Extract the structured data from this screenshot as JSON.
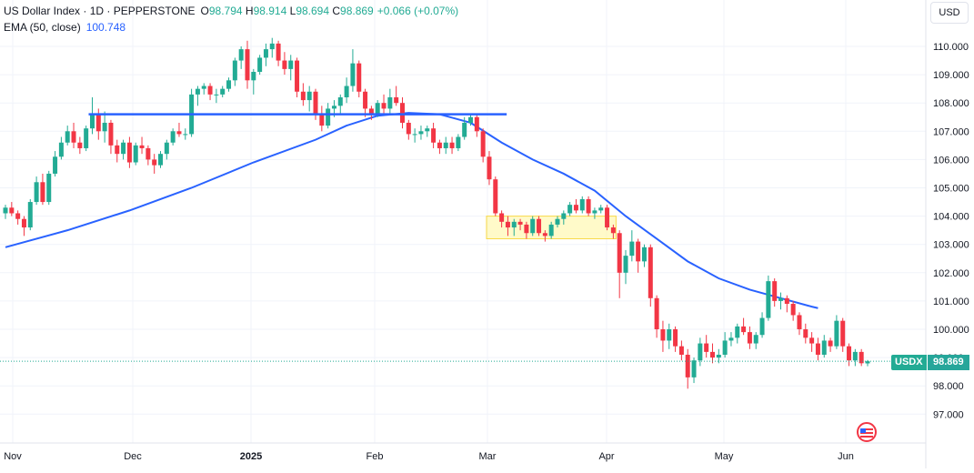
{
  "legend": {
    "title": "US Dollar Index · 1D · PEPPERSTONE",
    "o_label": "O",
    "o_value": "98.794",
    "h_label": "H",
    "h_value": "98.914",
    "l_label": "L",
    "l_value": "98.694",
    "c_label": "C",
    "c_value": "98.869",
    "change": "+0.066 (+0.07%)",
    "ema_name": "EMA (50, close)",
    "ema_value": "100.748"
  },
  "currency": "USD",
  "price_tag": {
    "symbol": "USDX",
    "value": "98.869"
  },
  "icons": {
    "flag": "us-flag-icon"
  },
  "colors": {
    "up": "#22ab94",
    "down": "#f23645",
    "ema": "#2962ff",
    "zone": "#fff59d"
  },
  "chart_data": {
    "type": "candlestick",
    "y_ticks": [
      "97.000",
      "98.000",
      "99.000",
      "100.000",
      "101.000",
      "102.000",
      "103.000",
      "104.000",
      "105.000",
      "106.000",
      "107.000",
      "108.000",
      "109.000",
      "110.000"
    ],
    "x_ticks": [
      {
        "label": "Nov",
        "bold": false
      },
      {
        "label": "Dec",
        "bold": false
      },
      {
        "label": "2025",
        "bold": true
      },
      {
        "label": "Feb",
        "bold": false
      },
      {
        "label": "Mar",
        "bold": false
      },
      {
        "label": "Apr",
        "bold": false
      },
      {
        "label": "May",
        "bold": false
      },
      {
        "label": "Jun",
        "bold": false
      }
    ],
    "ylim": [
      96.0,
      111.2
    ],
    "grid": true,
    "last_price": 98.869,
    "candles": [
      [
        104.1,
        104.4,
        103.9,
        104.3
      ],
      [
        104.3,
        104.5,
        104.0,
        104.1
      ],
      [
        104.1,
        104.2,
        103.7,
        103.9
      ],
      [
        103.9,
        104.0,
        103.3,
        103.6
      ],
      [
        103.6,
        104.6,
        103.5,
        104.5
      ],
      [
        104.5,
        105.4,
        104.4,
        105.2
      ],
      [
        105.2,
        105.5,
        104.4,
        104.5
      ],
      [
        104.5,
        105.6,
        104.4,
        105.5
      ],
      [
        105.5,
        106.3,
        105.4,
        106.1
      ],
      [
        106.1,
        106.8,
        106.0,
        106.6
      ],
      [
        106.6,
        107.2,
        106.5,
        107.0
      ],
      [
        107.0,
        107.3,
        106.4,
        106.6
      ],
      [
        106.6,
        106.8,
        106.2,
        106.4
      ],
      [
        106.4,
        107.2,
        106.3,
        107.1
      ],
      [
        107.1,
        108.2,
        106.9,
        107.6
      ],
      [
        107.6,
        107.8,
        106.7,
        107.0
      ],
      [
        107.0,
        107.7,
        106.6,
        107.3
      ],
      [
        107.3,
        107.4,
        106.2,
        106.5
      ],
      [
        106.5,
        106.7,
        105.9,
        106.2
      ],
      [
        106.2,
        106.7,
        106.0,
        106.6
      ],
      [
        106.6,
        106.8,
        105.7,
        105.9
      ],
      [
        105.9,
        106.6,
        105.8,
        106.5
      ],
      [
        106.5,
        106.8,
        106.2,
        106.4
      ],
      [
        106.4,
        106.5,
        105.8,
        106.0
      ],
      [
        106.0,
        106.2,
        105.5,
        105.8
      ],
      [
        105.8,
        106.3,
        105.7,
        106.2
      ],
      [
        106.2,
        106.7,
        106.0,
        106.6
      ],
      [
        106.6,
        107.1,
        106.5,
        107.0
      ],
      [
        107.0,
        107.3,
        106.8,
        106.9
      ],
      [
        106.9,
        107.1,
        106.7,
        106.9
      ],
      [
        106.9,
        108.5,
        106.8,
        108.3
      ],
      [
        108.3,
        108.6,
        107.9,
        108.5
      ],
      [
        108.5,
        108.7,
        108.3,
        108.6
      ],
      [
        108.6,
        108.7,
        108.1,
        108.3
      ],
      [
        108.3,
        108.5,
        108.0,
        108.3
      ],
      [
        108.3,
        108.6,
        108.2,
        108.5
      ],
      [
        108.5,
        108.9,
        108.4,
        108.8
      ],
      [
        108.8,
        109.6,
        108.6,
        109.5
      ],
      [
        109.5,
        110.0,
        109.2,
        109.9
      ],
      [
        109.9,
        110.2,
        108.5,
        108.8
      ],
      [
        108.8,
        109.2,
        108.3,
        109.1
      ],
      [
        109.1,
        109.7,
        109.0,
        109.6
      ],
      [
        109.6,
        110.1,
        109.3,
        109.9
      ],
      [
        109.9,
        110.3,
        109.6,
        110.1
      ],
      [
        110.1,
        110.2,
        109.3,
        109.5
      ],
      [
        109.5,
        109.8,
        109.0,
        109.2
      ],
      [
        109.2,
        109.7,
        108.8,
        109.5
      ],
      [
        109.5,
        109.6,
        108.2,
        108.4
      ],
      [
        108.4,
        108.7,
        107.9,
        108.1
      ],
      [
        108.1,
        108.6,
        107.7,
        108.4
      ],
      [
        108.4,
        108.5,
        107.4,
        107.6
      ],
      [
        107.6,
        107.9,
        107.0,
        107.2
      ],
      [
        107.2,
        108.0,
        107.1,
        107.8
      ],
      [
        107.8,
        108.1,
        107.5,
        107.9
      ],
      [
        107.9,
        108.3,
        107.6,
        108.2
      ],
      [
        108.2,
        108.9,
        108.0,
        108.6
      ],
      [
        108.6,
        109.9,
        108.4,
        109.4
      ],
      [
        109.4,
        109.5,
        108.2,
        108.4
      ],
      [
        108.4,
        108.5,
        107.5,
        107.8
      ],
      [
        107.8,
        107.9,
        107.4,
        107.6
      ],
      [
        107.6,
        108.1,
        107.5,
        108.0
      ],
      [
        108.0,
        108.3,
        107.6,
        107.8
      ],
      [
        107.8,
        108.5,
        107.6,
        108.2
      ],
      [
        108.2,
        108.6,
        107.9,
        108.0
      ],
      [
        108.0,
        108.2,
        107.1,
        107.3
      ],
      [
        107.3,
        107.4,
        106.7,
        106.9
      ],
      [
        106.9,
        107.1,
        106.6,
        106.9
      ],
      [
        106.9,
        107.2,
        106.7,
        107.0
      ],
      [
        107.0,
        107.2,
        106.8,
        107.1
      ],
      [
        107.1,
        107.3,
        106.4,
        106.6
      ],
      [
        106.6,
        106.7,
        106.2,
        106.4
      ],
      [
        106.4,
        106.8,
        106.2,
        106.6
      ],
      [
        106.6,
        106.8,
        106.2,
        106.4
      ],
      [
        106.4,
        106.9,
        106.3,
        106.8
      ],
      [
        106.8,
        107.5,
        106.7,
        107.3
      ],
      [
        107.3,
        107.6,
        107.2,
        107.5
      ],
      [
        107.5,
        107.6,
        106.8,
        107.0
      ],
      [
        107.0,
        107.1,
        105.9,
        106.1
      ],
      [
        106.1,
        106.3,
        105.1,
        105.3
      ],
      [
        105.3,
        105.4,
        104.0,
        104.1
      ],
      [
        104.1,
        104.2,
        103.6,
        103.8
      ],
      [
        103.8,
        104.0,
        103.3,
        103.6
      ],
      [
        103.6,
        103.9,
        103.3,
        103.8
      ],
      [
        103.8,
        103.9,
        103.5,
        103.7
      ],
      [
        103.7,
        103.8,
        103.2,
        103.4
      ],
      [
        103.4,
        104.0,
        103.3,
        103.9
      ],
      [
        103.9,
        104.0,
        103.3,
        103.4
      ],
      [
        103.4,
        103.5,
        103.1,
        103.3
      ],
      [
        103.3,
        103.8,
        103.2,
        103.7
      ],
      [
        103.7,
        104.0,
        103.6,
        103.9
      ],
      [
        103.9,
        104.2,
        103.7,
        104.1
      ],
      [
        104.1,
        104.5,
        104.0,
        104.4
      ],
      [
        104.4,
        104.6,
        104.1,
        104.2
      ],
      [
        104.2,
        104.7,
        104.1,
        104.6
      ],
      [
        104.6,
        104.7,
        104.0,
        104.1
      ],
      [
        104.1,
        104.3,
        103.9,
        104.2
      ],
      [
        104.2,
        104.4,
        104.1,
        104.3
      ],
      [
        104.3,
        104.4,
        103.5,
        103.6
      ],
      [
        103.6,
        103.7,
        103.2,
        103.4
      ],
      [
        103.4,
        103.5,
        101.1,
        102.0
      ],
      [
        102.0,
        102.8,
        101.6,
        102.6
      ],
      [
        102.6,
        103.5,
        102.4,
        103.1
      ],
      [
        103.1,
        103.2,
        102.0,
        102.4
      ],
      [
        102.4,
        103.0,
        102.2,
        102.9
      ],
      [
        102.9,
        103.0,
        100.8,
        101.1
      ],
      [
        101.1,
        101.2,
        99.7,
        100.0
      ],
      [
        100.0,
        100.3,
        99.2,
        99.6
      ],
      [
        99.6,
        100.2,
        99.3,
        100.0
      ],
      [
        100.0,
        100.1,
        99.2,
        99.4
      ],
      [
        99.4,
        99.6,
        98.9,
        99.1
      ],
      [
        99.1,
        99.3,
        97.9,
        98.3
      ],
      [
        98.3,
        99.0,
        98.1,
        98.9
      ],
      [
        98.9,
        99.7,
        98.7,
        99.5
      ],
      [
        99.5,
        99.8,
        99.0,
        99.2
      ],
      [
        99.2,
        99.5,
        98.8,
        99.0
      ],
      [
        99.0,
        99.3,
        98.8,
        99.1
      ],
      [
        99.1,
        99.9,
        99.0,
        99.6
      ],
      [
        99.6,
        99.9,
        99.4,
        99.7
      ],
      [
        99.7,
        100.2,
        99.5,
        100.1
      ],
      [
        100.1,
        100.4,
        99.8,
        99.9
      ],
      [
        99.9,
        100.1,
        99.3,
        99.5
      ],
      [
        99.5,
        99.9,
        99.3,
        99.8
      ],
      [
        99.8,
        100.6,
        99.7,
        100.4
      ],
      [
        100.4,
        101.9,
        100.3,
        101.7
      ],
      [
        101.7,
        101.8,
        100.8,
        101.0
      ],
      [
        101.0,
        101.3,
        100.7,
        101.1
      ],
      [
        101.1,
        101.2,
        100.6,
        100.9
      ],
      [
        100.9,
        101.0,
        100.3,
        100.5
      ],
      [
        100.5,
        100.6,
        99.8,
        100.0
      ],
      [
        100.0,
        100.2,
        99.5,
        99.7
      ],
      [
        99.7,
        99.9,
        99.2,
        99.5
      ],
      [
        99.5,
        99.7,
        98.9,
        99.1
      ],
      [
        99.1,
        99.8,
        99.0,
        99.6
      ],
      [
        99.6,
        99.7,
        99.2,
        99.4
      ],
      [
        99.4,
        100.5,
        99.3,
        100.3
      ],
      [
        100.3,
        100.4,
        99.2,
        99.4
      ],
      [
        99.4,
        99.5,
        98.7,
        98.9
      ],
      [
        98.9,
        99.3,
        98.7,
        99.2
      ],
      [
        99.2,
        99.3,
        98.7,
        98.8
      ],
      [
        98.794,
        98.914,
        98.694,
        98.869
      ]
    ],
    "ema": [
      [
        0,
        102.9
      ],
      [
        10,
        103.5
      ],
      [
        20,
        104.2
      ],
      [
        30,
        105.0
      ],
      [
        40,
        105.9
      ],
      [
        50,
        106.7
      ],
      [
        55,
        107.2
      ],
      [
        60,
        107.55
      ],
      [
        65,
        107.65
      ],
      [
        70,
        107.6
      ],
      [
        75,
        107.3
      ],
      [
        80,
        106.6
      ],
      [
        85,
        106.0
      ],
      [
        90,
        105.5
      ],
      [
        95,
        104.9
      ],
      [
        100,
        104.0
      ],
      [
        105,
        103.2
      ],
      [
        110,
        102.4
      ],
      [
        115,
        101.8
      ],
      [
        120,
        101.4
      ],
      [
        125,
        101.1
      ],
      [
        130,
        100.8
      ],
      [
        131,
        100.748
      ]
    ],
    "resistance_line": {
      "price": 107.6,
      "from_index": 14,
      "to_index": 77
    },
    "range_zone": {
      "top": 104.0,
      "bottom": 103.2,
      "from_index": 78,
      "to_index": 98
    }
  }
}
